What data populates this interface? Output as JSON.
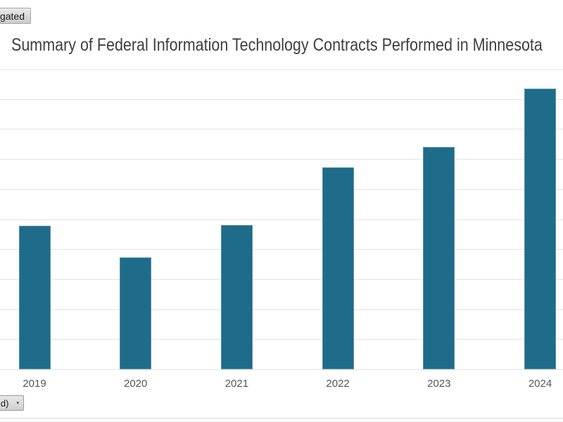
{
  "chips": {
    "top_left": {
      "visible_text": "igated"
    }
  },
  "title": "Summary of Federal Information Technology Contracts Performed in Minnesota",
  "dropdown": {
    "visible_text": "d)",
    "caret": "▾"
  },
  "chart_data": {
    "type": "bar",
    "title": "Summary of Federal Information Technology Contracts Performed in Minnesota",
    "categories": [
      "2019",
      "2020",
      "2021",
      "2022",
      "2023",
      "2024"
    ],
    "values": [
      4.77,
      3.72,
      4.81,
      6.73,
      7.41,
      9.34
    ],
    "xlabel": "",
    "ylabel": "",
    "ylim": [
      0,
      10
    ],
    "grid": "horizontal-only",
    "gridline_count": 11,
    "legend": "none",
    "notes": "y-axis tick labels are cropped out of the visible frame; values estimated in gridline units (1 unit = 1 gridline interval)",
    "bar_color": "#1f6b8a",
    "gridline_color": "#e4e4e4",
    "title_color": "#3f3f3f",
    "tick_label_color": "#555555"
  }
}
